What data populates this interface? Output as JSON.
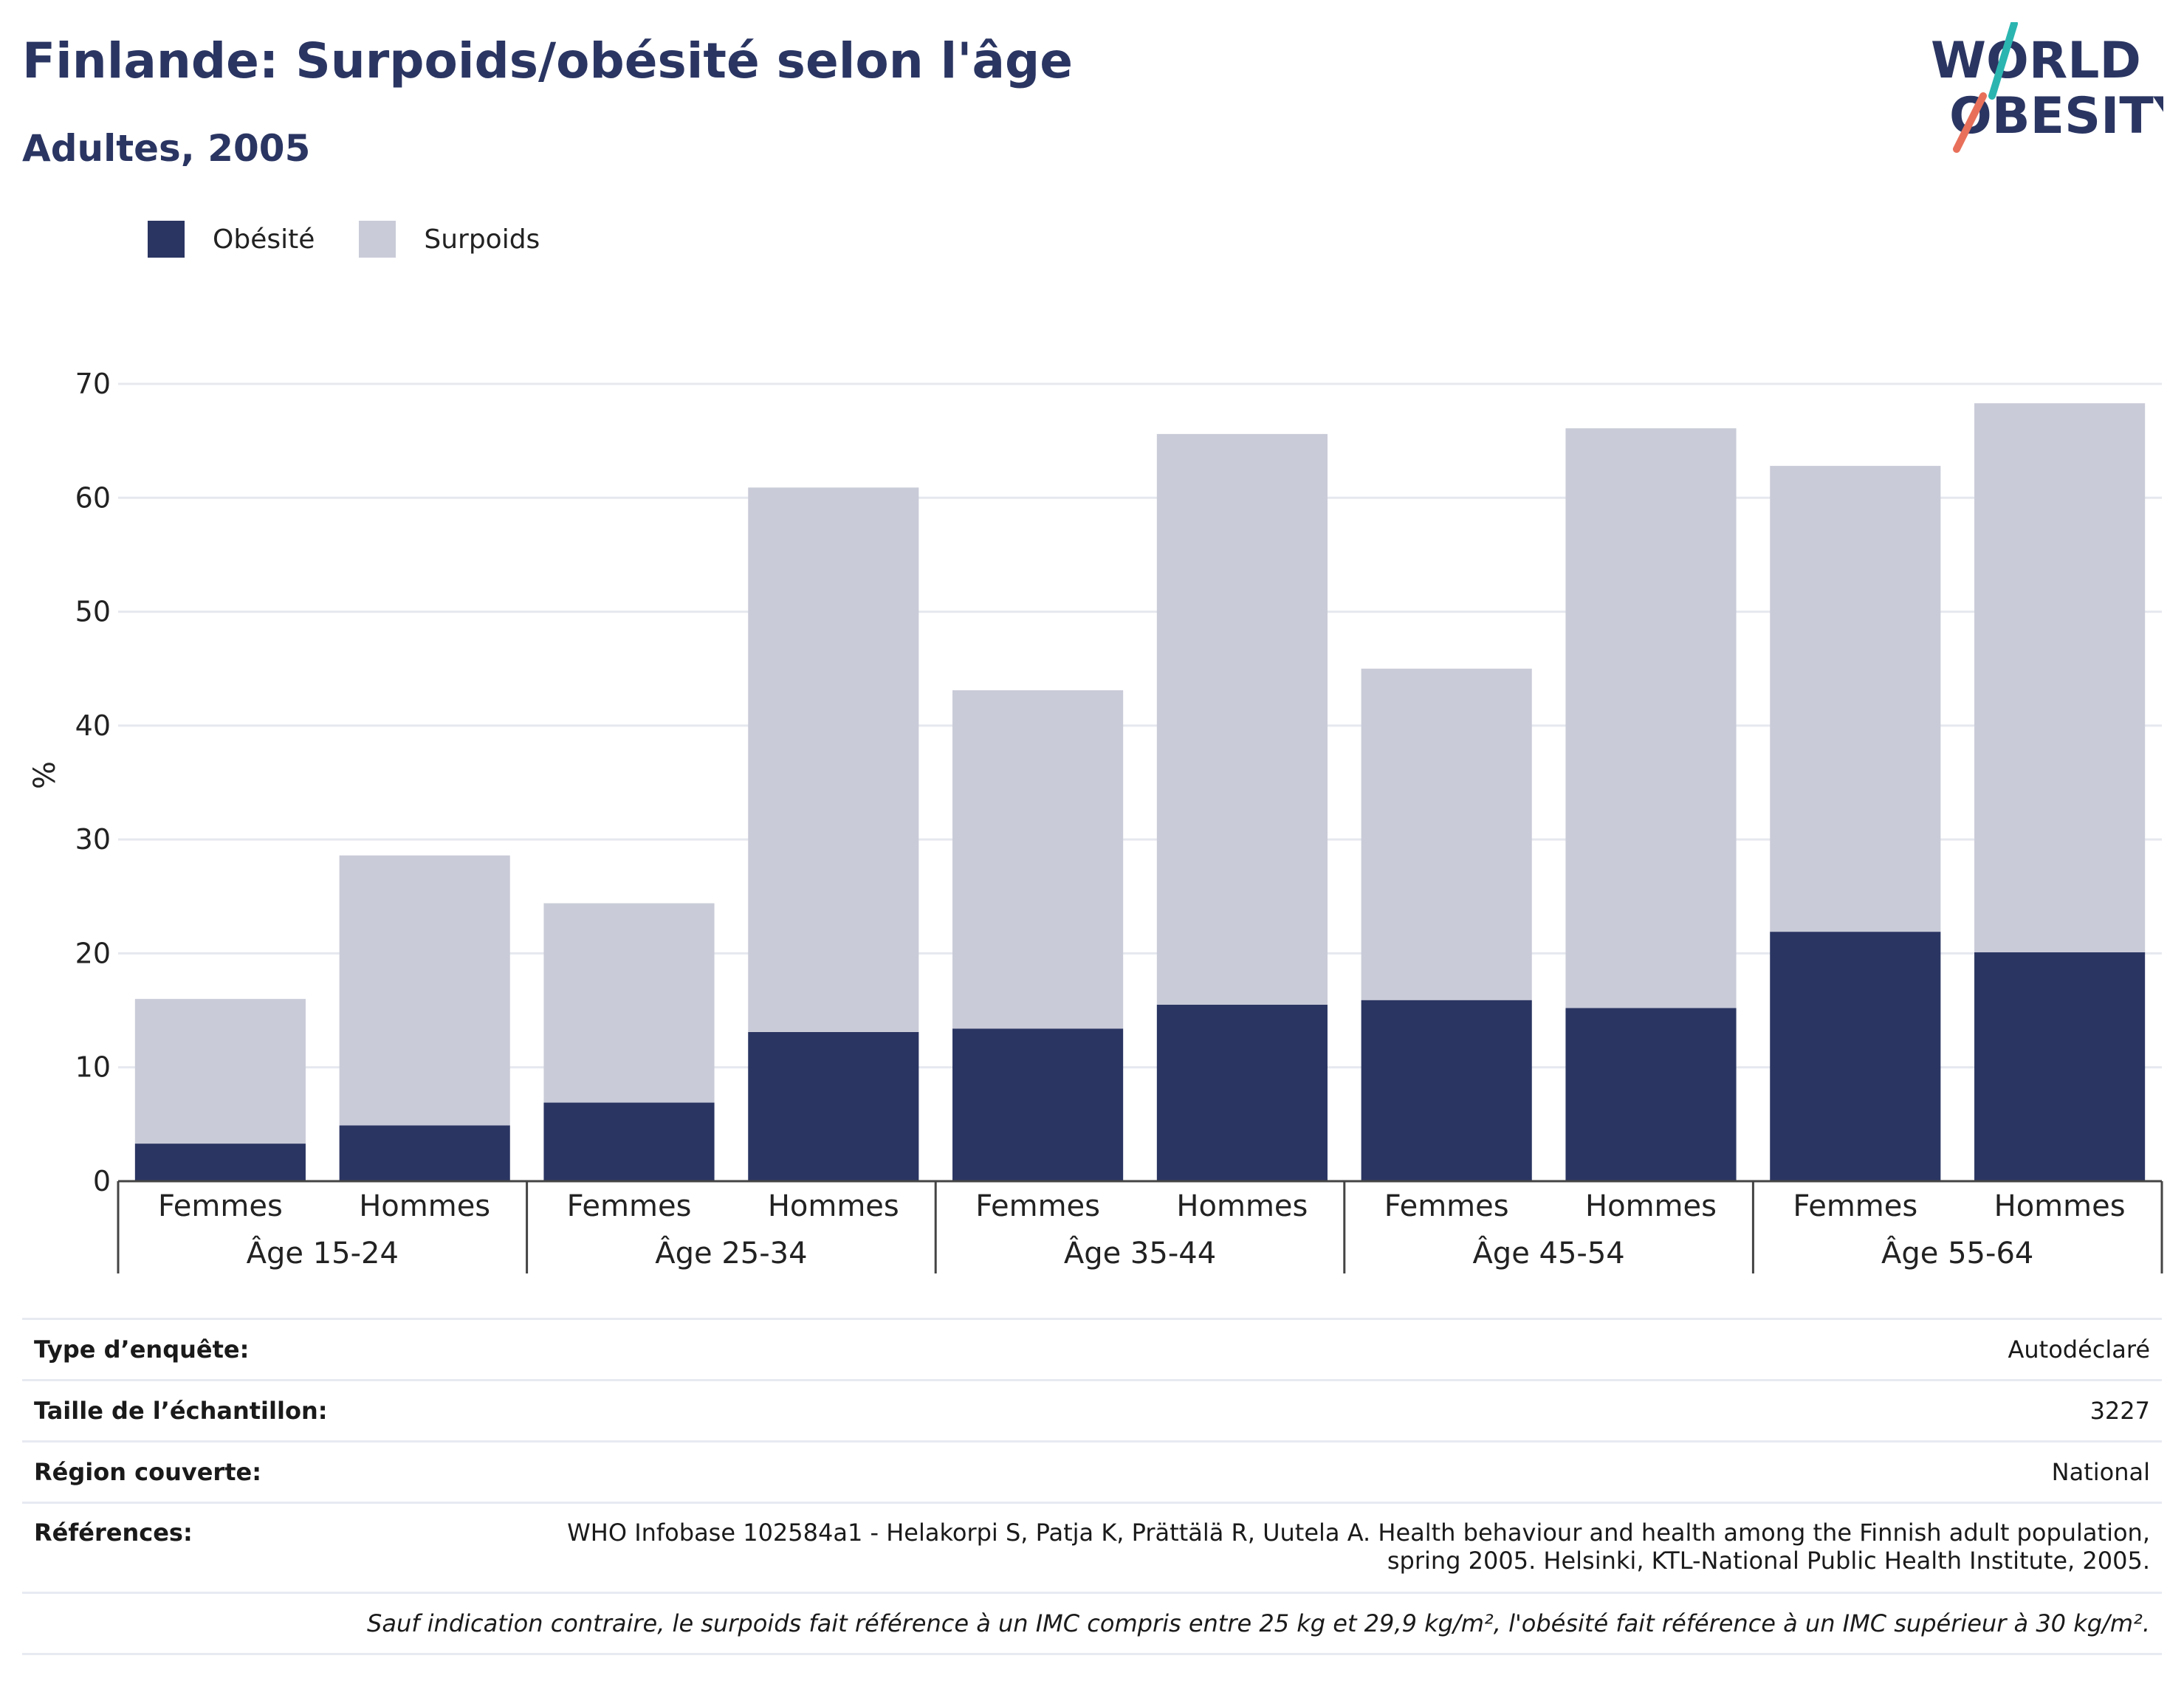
{
  "header": {
    "title": "Finlande: Surpoids/obésité selon l'âge",
    "subtitle": "Adultes, 2005"
  },
  "logo": {
    "line1": "WORLD",
    "line2": "OBESITY",
    "colors": {
      "text": "#2a3562",
      "slash_teal": "#2bb5b0",
      "slash_coral": "#e8705a"
    }
  },
  "legend": {
    "items": [
      {
        "label": "Obésité",
        "color": "#2a3562"
      },
      {
        "label": "Surpoids",
        "color": "#c9cbd8"
      }
    ]
  },
  "chart_data": {
    "type": "bar",
    "stacked": true,
    "ylabel": "%",
    "ylim": [
      0,
      70
    ],
    "yticks": [
      0,
      10,
      20,
      30,
      40,
      50,
      60,
      70
    ],
    "grid": true,
    "groups": [
      "Âge 15-24",
      "Âge 25-34",
      "Âge 35-44",
      "Âge 45-54",
      "Âge 55-64"
    ],
    "categories": [
      "Femmes",
      "Hommes",
      "Femmes",
      "Hommes",
      "Femmes",
      "Hommes",
      "Femmes",
      "Hommes",
      "Femmes",
      "Hommes"
    ],
    "series": [
      {
        "name": "Obésité",
        "color": "#2a3562",
        "values": [
          3.3,
          4.9,
          6.9,
          13.1,
          13.4,
          15.5,
          15.9,
          15.2,
          21.9,
          20.1
        ]
      },
      {
        "name": "Surpoids",
        "color": "#c9cbd8",
        "values": [
          12.7,
          23.7,
          17.5,
          47.8,
          29.7,
          50.1,
          29.1,
          50.9,
          40.9,
          48.2
        ]
      }
    ],
    "legend_position": "top-left"
  },
  "info": {
    "rows": [
      {
        "key": "Type d’enquête:",
        "value": "Autodéclaré"
      },
      {
        "key": "Taille de l’échantillon:",
        "value": "3227"
      },
      {
        "key": "Région couverte:",
        "value": "National"
      },
      {
        "key": "Références:",
        "value_line1": "WHO Infobase 102584a1 - Helakorpi S, Patja K, Prättälä R, Uutela A. Health behaviour and health among the Finnish adult population,",
        "value_line2": "spring 2005. Helsinki, KTL-National Public Health Institute, 2005."
      }
    ],
    "note": "Sauf indication contraire, le surpoids fait référence à un IMC compris entre 25 kg et 29,9 kg/m², l'obésité fait référence à un IMC supérieur à 30 kg/m²."
  }
}
